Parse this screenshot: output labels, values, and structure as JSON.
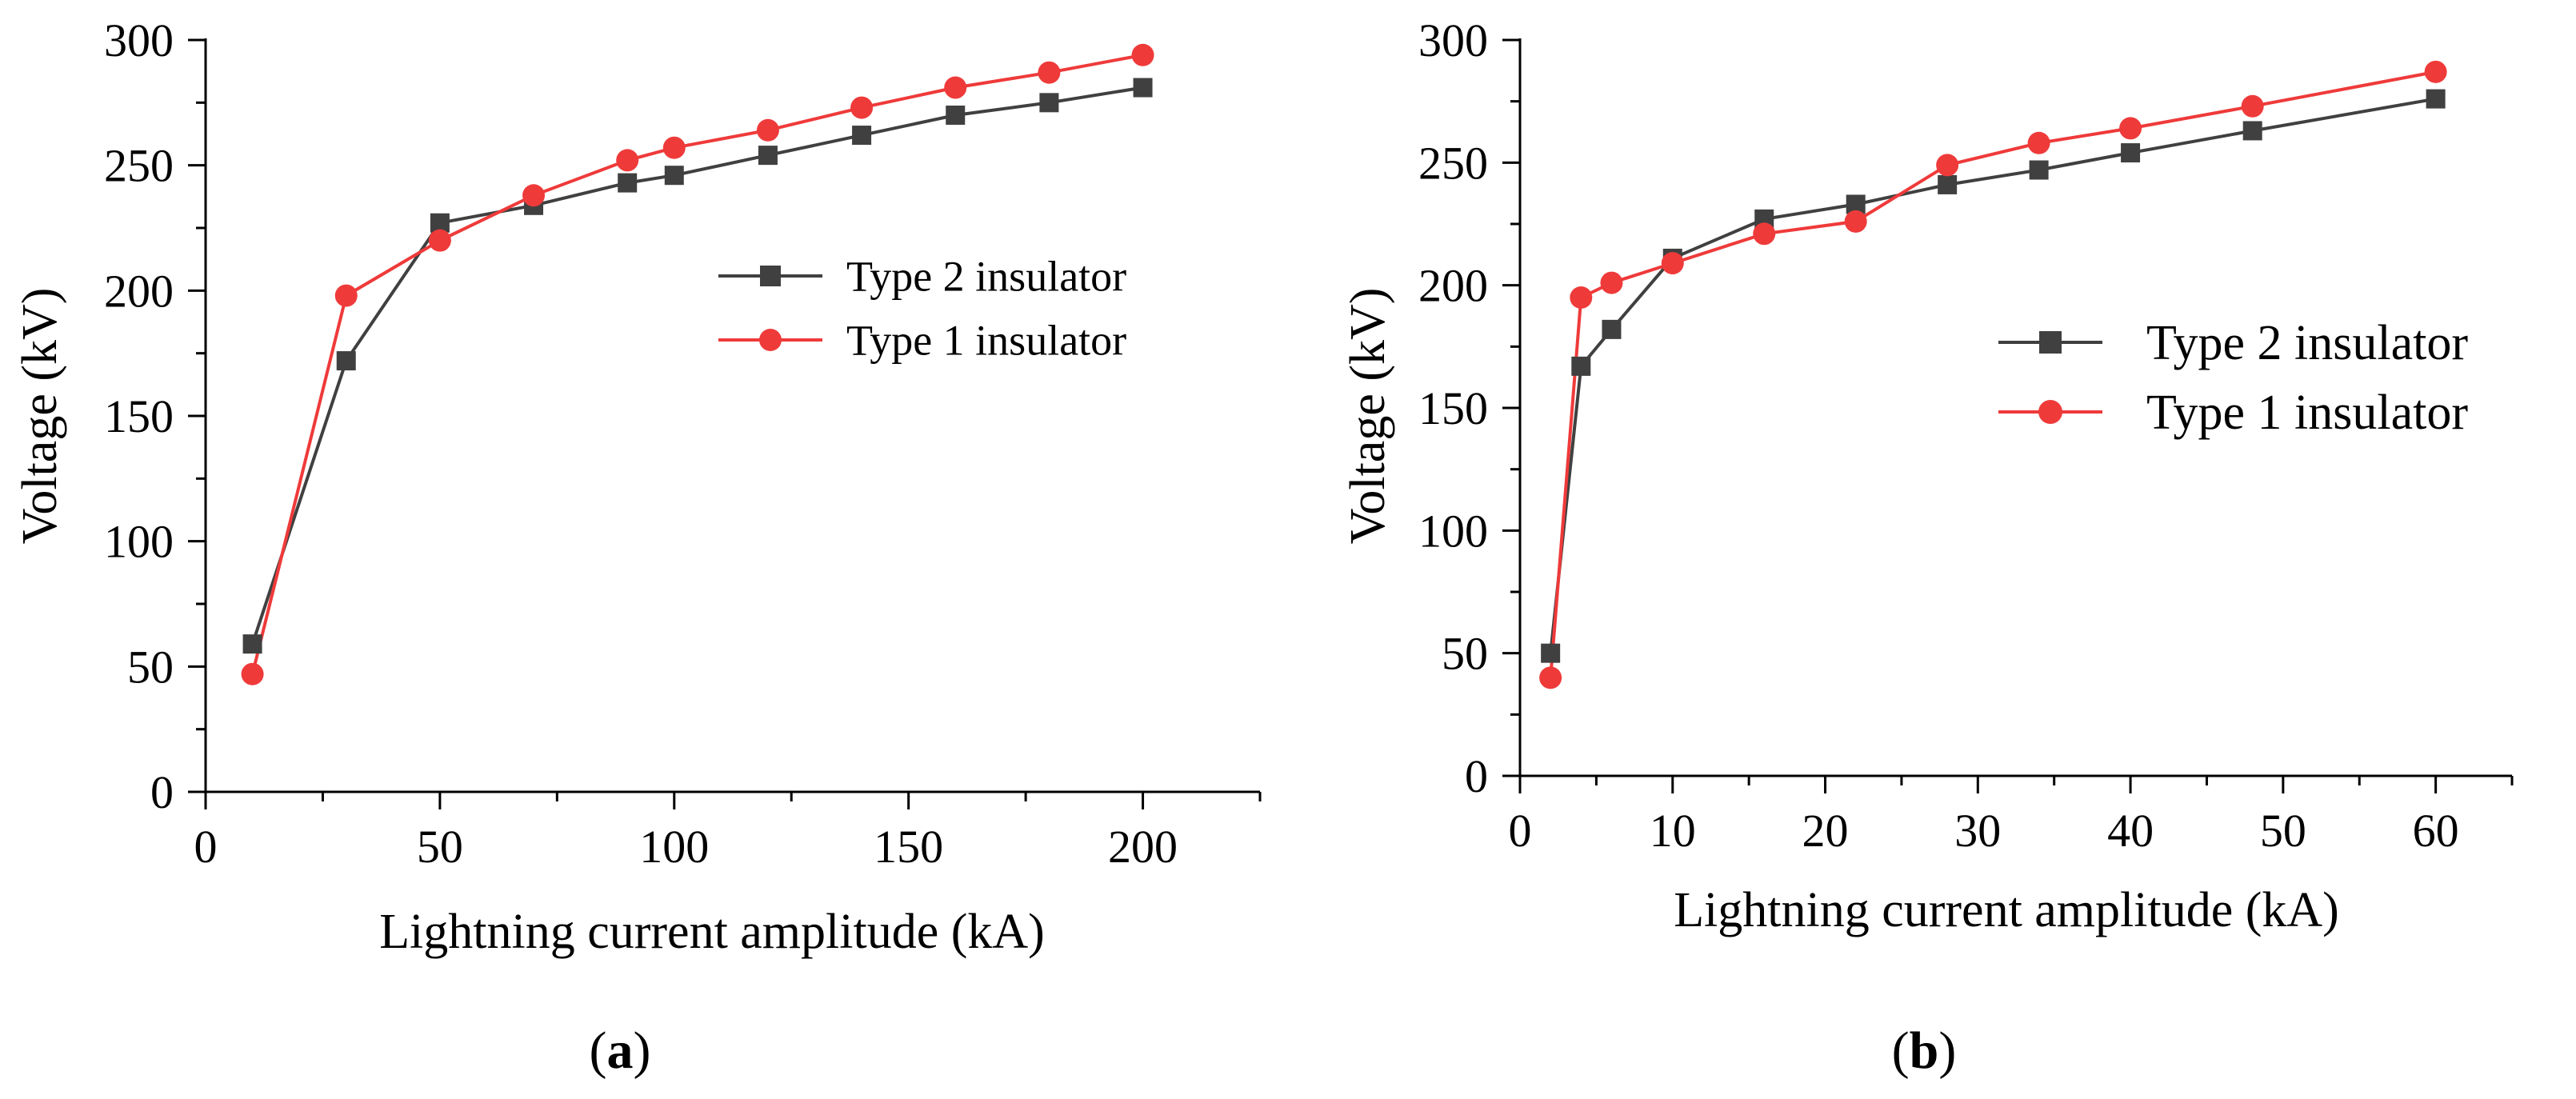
{
  "chart_data": [
    {
      "type": "line",
      "panel": "a",
      "panel_label": "a",
      "title": "",
      "xlabel": "Lightning current amplitude (kA)",
      "ylabel": "Voltage (kV)",
      "xlim": [
        0,
        225
      ],
      "ylim": [
        0,
        300
      ],
      "xticks": [
        0,
        50,
        100,
        150,
        200
      ],
      "yticks": [
        0,
        50,
        100,
        150,
        200,
        250,
        300
      ],
      "legend_position": "center-right",
      "series": [
        {
          "name": "Type 2 insulator",
          "color": "#404040",
          "marker": "square",
          "x": [
            10,
            30,
            50,
            70,
            90,
            100,
            120,
            140,
            160,
            180,
            200
          ],
          "y": [
            59,
            172,
            227,
            234,
            243,
            246,
            254,
            262,
            270,
            275,
            281
          ]
        },
        {
          "name": "Type 1 insulator",
          "color": "#ef3a3a",
          "marker": "circle",
          "x": [
            10,
            30,
            50,
            70,
            90,
            100,
            120,
            140,
            160,
            180,
            200
          ],
          "y": [
            47,
            198,
            220,
            238,
            252,
            257,
            264,
            273,
            281,
            287,
            294
          ]
        }
      ]
    },
    {
      "type": "line",
      "panel": "b",
      "panel_label": "b",
      "title": "",
      "xlabel": "Lightning current amplitude (kA)",
      "ylabel": "Voltage (kV)",
      "xlim": [
        0,
        65
      ],
      "ylim": [
        0,
        300
      ],
      "xticks": [
        0,
        10,
        20,
        30,
        40,
        50,
        60
      ],
      "yticks": [
        0,
        50,
        100,
        150,
        200,
        250,
        300
      ],
      "legend_position": "center-right",
      "series": [
        {
          "name": "Type 2 insulator",
          "color": "#404040",
          "marker": "square",
          "x": [
            2,
            4,
            6,
            10,
            16,
            22,
            28,
            34,
            40,
            48,
            60
          ],
          "y": [
            50,
            167,
            182,
            211,
            227,
            233,
            241,
            247,
            254,
            263,
            276
          ]
        },
        {
          "name": "Type 1 insulator",
          "color": "#ef3a3a",
          "marker": "circle",
          "x": [
            2,
            4,
            6,
            10,
            16,
            22,
            28,
            34,
            40,
            48,
            60
          ],
          "y": [
            40,
            195,
            201,
            209,
            221,
            226,
            249,
            258,
            264,
            273,
            287
          ]
        }
      ]
    }
  ]
}
